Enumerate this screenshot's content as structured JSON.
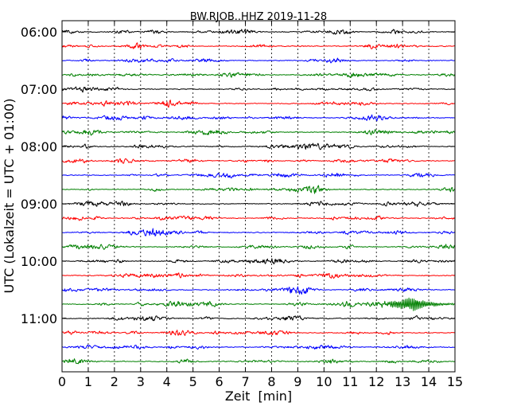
{
  "chart_data": {
    "type": "line",
    "title": "BW.RJOB..HHZ 2019-11-28",
    "xlabel": "Zeit  [min]",
    "ylabel": "UTC (Lokalzeit = UTC + 01:00)",
    "xlim": [
      0,
      15
    ],
    "x_ticks": [
      "0",
      "1",
      "2",
      "3",
      "4",
      "5",
      "6",
      "7",
      "8",
      "9",
      "10",
      "11",
      "12",
      "13",
      "14",
      "15"
    ],
    "y_tick_labels": [
      "06:00",
      "07:00",
      "08:00",
      "09:00",
      "10:00",
      "11:00"
    ],
    "grid": "vertical-dotted",
    "row_interval_minutes": 15,
    "trace_colors": [
      "#000000",
      "#ff0000",
      "#0000ff",
      "#008000"
    ],
    "rows": [
      {
        "start": "06:00",
        "color": "#000000",
        "event": null
      },
      {
        "start": "06:15",
        "color": "#ff0000",
        "event": null
      },
      {
        "start": "06:30",
        "color": "#0000ff",
        "event": null
      },
      {
        "start": "06:45",
        "color": "#008000",
        "event": null
      },
      {
        "start": "07:00",
        "color": "#000000",
        "event": null
      },
      {
        "start": "07:15",
        "color": "#ff0000",
        "event": null
      },
      {
        "start": "07:30",
        "color": "#0000ff",
        "event": null
      },
      {
        "start": "07:45",
        "color": "#008000",
        "event": null
      },
      {
        "start": "08:00",
        "color": "#000000",
        "event": null
      },
      {
        "start": "08:15",
        "color": "#ff0000",
        "event": null
      },
      {
        "start": "08:30",
        "color": "#0000ff",
        "event": null
      },
      {
        "start": "08:45",
        "color": "#008000",
        "event": null
      },
      {
        "start": "09:00",
        "color": "#000000",
        "event": null
      },
      {
        "start": "09:15",
        "color": "#ff0000",
        "event": null
      },
      {
        "start": "09:30",
        "color": "#0000ff",
        "event": null
      },
      {
        "start": "09:45",
        "color": "#008000",
        "event": null
      },
      {
        "start": "10:00",
        "color": "#000000",
        "event": null
      },
      {
        "start": "10:15",
        "color": "#ff0000",
        "event": null
      },
      {
        "start": "10:30",
        "color": "#0000ff",
        "event": null
      },
      {
        "start": "10:45",
        "color": "#008000",
        "event": {
          "onset_min": 11.3,
          "peak_min": 13.4,
          "end_min": 15.0,
          "peak_amplitude": 4.0
        }
      },
      {
        "start": "11:00",
        "color": "#000000",
        "event": null
      },
      {
        "start": "11:15",
        "color": "#ff0000",
        "event": null
      },
      {
        "start": "11:30",
        "color": "#0000ff",
        "event": null
      },
      {
        "start": "11:45",
        "color": "#008000",
        "event": null
      }
    ]
  }
}
